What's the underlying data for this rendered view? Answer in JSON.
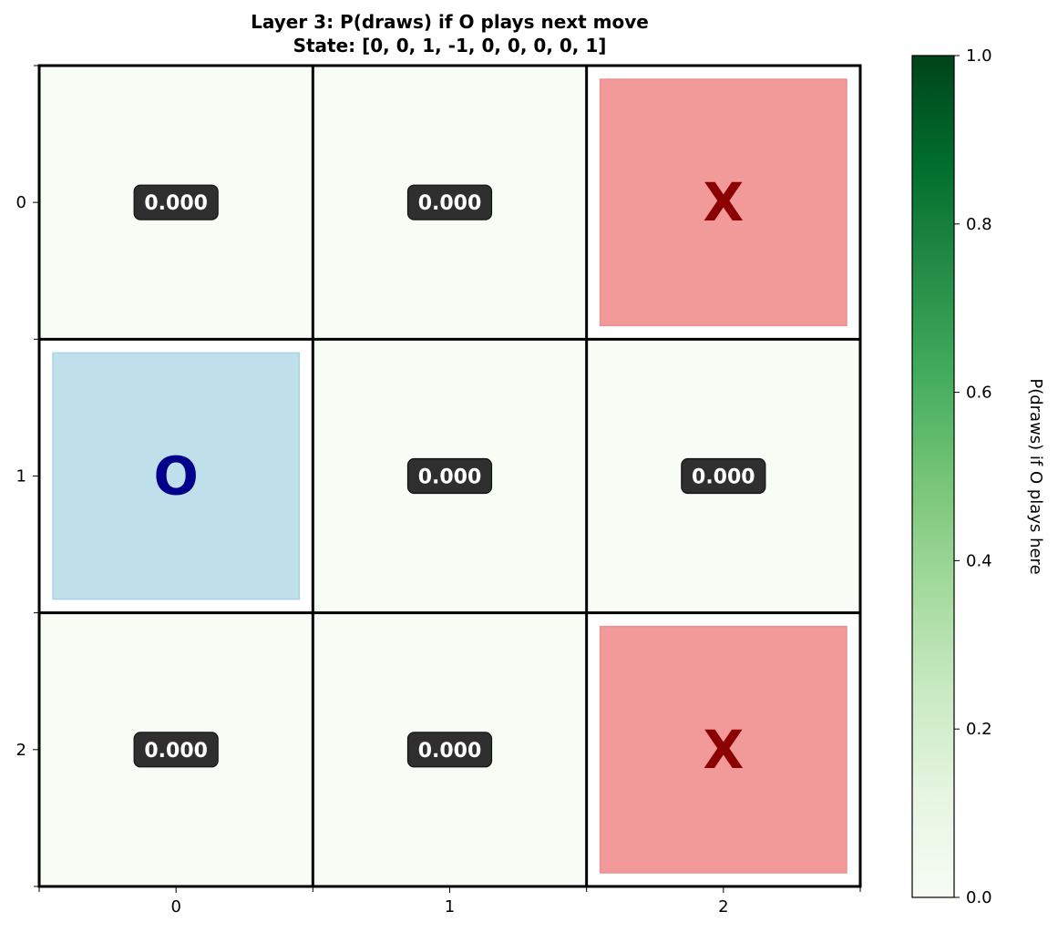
{
  "chart_data": {
    "type": "heatmap",
    "title": "Layer 3: P(draws) if O plays next move",
    "subtitle": "State: [0, 0, 1, -1, 0, 0, 0, 0, 1]",
    "x_ticks": [
      "0",
      "1",
      "2"
    ],
    "y_ticks": [
      "0",
      "1",
      "2"
    ],
    "cells": [
      {
        "row": 0,
        "col": 0,
        "state": "empty",
        "value": 0.0,
        "label": "0.000"
      },
      {
        "row": 0,
        "col": 1,
        "state": "empty",
        "value": 0.0,
        "label": "0.000"
      },
      {
        "row": 0,
        "col": 2,
        "state": "X",
        "value": null,
        "label": "X"
      },
      {
        "row": 1,
        "col": 0,
        "state": "O",
        "value": null,
        "label": "O"
      },
      {
        "row": 1,
        "col": 1,
        "state": "empty",
        "value": 0.0,
        "label": "0.000"
      },
      {
        "row": 1,
        "col": 2,
        "state": "empty",
        "value": 0.0,
        "label": "0.000"
      },
      {
        "row": 2,
        "col": 0,
        "state": "empty",
        "value": 0.0,
        "label": "0.000"
      },
      {
        "row": 2,
        "col": 1,
        "state": "empty",
        "value": 0.0,
        "label": "0.000"
      },
      {
        "row": 2,
        "col": 2,
        "state": "X",
        "value": null,
        "label": "X"
      }
    ],
    "colorbar": {
      "label": "P(draws) if O plays here",
      "range": [
        0,
        1
      ],
      "ticks": [
        "0.0",
        "0.2",
        "0.4",
        "0.6",
        "0.8",
        "1.0"
      ],
      "colormap": "Greens"
    },
    "colors": {
      "x_fill": "#f29999",
      "x_text": "#8b0000",
      "o_fill": "#bfdfea",
      "o_text": "#00008b",
      "badge_bg": "#2f2f2f",
      "badge_text": "#ffffff"
    }
  }
}
